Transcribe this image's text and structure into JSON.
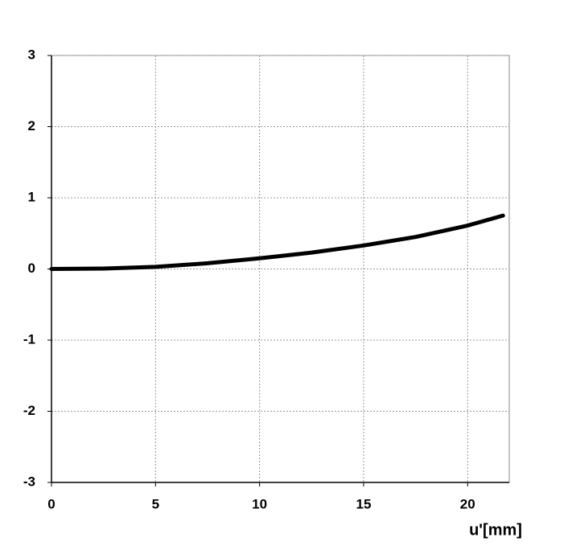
{
  "chart_data": {
    "type": "line",
    "x_label": "u'[mm]",
    "x": [
      0,
      2.5,
      5,
      7.5,
      10,
      12.5,
      15,
      17.5,
      20,
      21.7
    ],
    "series": [
      {
        "color": "#000000",
        "values": [
          0,
          0.005,
          0.03,
          0.08,
          0.15,
          0.23,
          0.33,
          0.45,
          0.61,
          0.75
        ]
      }
    ],
    "xlim": [
      0,
      22
    ],
    "xticks": [
      0,
      5,
      10,
      15,
      20
    ],
    "ylim": [
      -3,
      3
    ],
    "yticks": [
      -3,
      -2,
      -1,
      0,
      1,
      2,
      3
    ],
    "grid": true
  }
}
